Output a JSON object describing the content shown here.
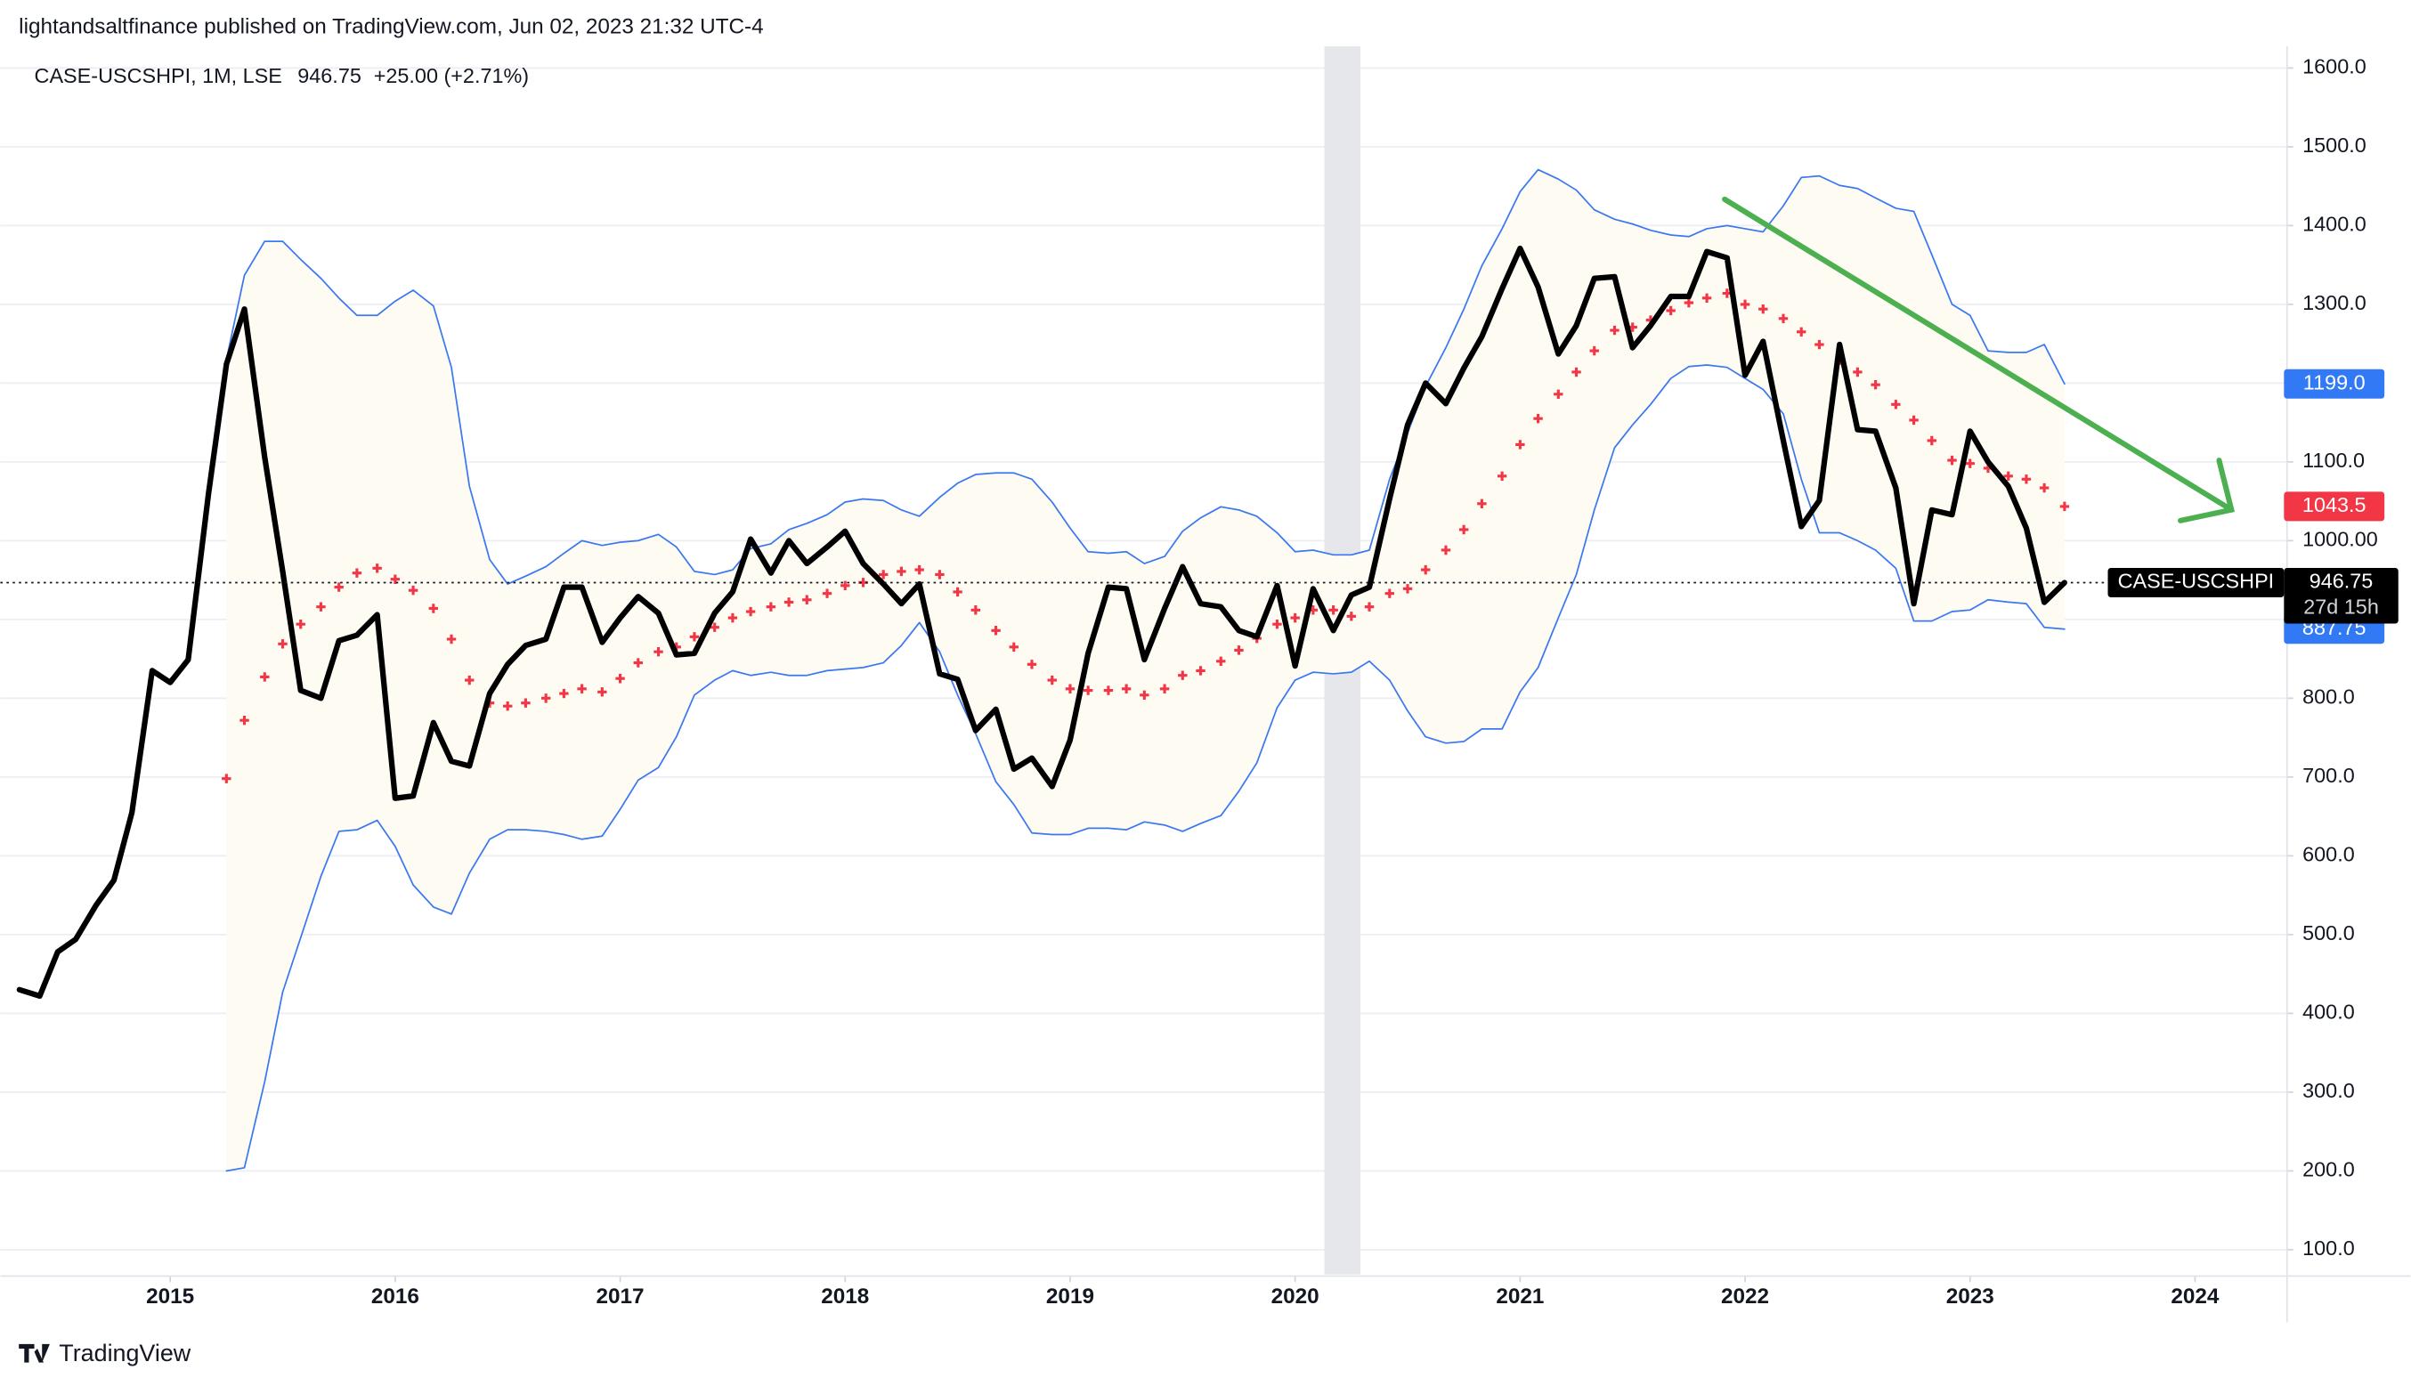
{
  "chart_data": {
    "type": "line",
    "header": "lightandsaltfinance published on TradingView.com, Jun 02, 2023 21:32 UTC-4",
    "legend": "CASE-USCSHPI, 1M, LSE",
    "change_label": "+25.00 (+2.71%)",
    "countdown": "27d 15h",
    "brand": "TradingView",
    "xlim": [
      2014.245,
      2024.409
    ],
    "xticks": [
      2015,
      2016,
      2017,
      2018,
      2019,
      2020,
      2021,
      2022,
      2023,
      2024
    ],
    "ylim": [
      68.5,
      1627.5
    ],
    "yticks": [
      {
        "value": 100,
        "label": "100.0"
      },
      {
        "value": 200,
        "label": "200.0"
      },
      {
        "value": 300,
        "label": "300.0"
      },
      {
        "value": 400,
        "label": "400.0"
      },
      {
        "value": 500,
        "label": "500.0"
      },
      {
        "value": 600,
        "label": "600.0"
      },
      {
        "value": 700,
        "label": "700.0"
      },
      {
        "value": 800,
        "label": "800.0"
      },
      {
        "value": 900,
        "label": "900.0"
      },
      {
        "value": 1000,
        "label": "1000.00"
      },
      {
        "value": 1100,
        "label": "1100.0"
      },
      {
        "value": 1200,
        "label": "1200.0"
      },
      {
        "value": 1300,
        "label": "1300.0"
      },
      {
        "value": 1400,
        "label": "1400.0"
      },
      {
        "value": 1500,
        "label": "1500.0"
      },
      {
        "value": 1600,
        "label": "1600.0"
      }
    ],
    "grid": true,
    "shaded_range": [
      2020.13,
      2020.29
    ],
    "shaded_color": "#e6e7ea",
    "band_fill": "#fdfbf2",
    "x": [
      2014.33,
      2014.42,
      2014.5,
      2014.58,
      2014.67,
      2014.75,
      2014.83,
      2014.92,
      2015,
      2015.08,
      2015.17,
      2015.25,
      2015.33,
      2015.42,
      2015.5,
      2015.58,
      2015.67,
      2015.75,
      2015.83,
      2015.92,
      2016,
      2016.08,
      2016.17,
      2016.25,
      2016.33,
      2016.42,
      2016.5,
      2016.58,
      2016.67,
      2016.75,
      2016.83,
      2016.92,
      2017,
      2017.08,
      2017.17,
      2017.25,
      2017.33,
      2017.42,
      2017.5,
      2017.58,
      2017.67,
      2017.75,
      2017.83,
      2017.92,
      2018,
      2018.08,
      2018.17,
      2018.25,
      2018.33,
      2018.42,
      2018.5,
      2018.58,
      2018.67,
      2018.75,
      2018.83,
      2018.92,
      2019,
      2019.08,
      2019.17,
      2019.25,
      2019.33,
      2019.42,
      2019.5,
      2019.58,
      2019.67,
      2019.75,
      2019.83,
      2019.92,
      2020,
      2020.08,
      2020.17,
      2020.25,
      2020.33,
      2020.42,
      2020.5,
      2020.58,
      2020.67,
      2020.75,
      2020.83,
      2020.92,
      2021,
      2021.08,
      2021.17,
      2021.25,
      2021.33,
      2021.42,
      2021.5,
      2021.58,
      2021.67,
      2021.75,
      2021.83,
      2021.92,
      2022,
      2022.08,
      2022.17,
      2022.25,
      2022.33,
      2022.42,
      2022.5,
      2022.58,
      2022.67,
      2022.75,
      2022.83,
      2022.92,
      2023,
      2023.08,
      2023.17,
      2023.25,
      2023.33,
      2023.42
    ],
    "series": [
      {
        "name": "CASE-USCSHPI",
        "color": "#000000",
        "style": "line",
        "width": 3.6,
        "values": [
          430,
          422,
          478,
          494,
          537,
          569,
          655,
          835,
          820,
          849,
          1059,
          1224,
          1294,
          1106,
          961,
          810,
          800,
          873,
          880,
          906,
          673,
          676,
          769,
          720,
          714,
          806,
          843,
          867,
          875,
          941,
          941,
          871,
          902,
          929,
          908,
          855,
          857,
          908,
          935,
          1002,
          959,
          1000,
          971,
          992,
          1012,
          971,
          945,
          920,
          945,
          831,
          824,
          759,
          786,
          710,
          724,
          688,
          747,
          857,
          941,
          939,
          849,
          914,
          967,
          920,
          916,
          886,
          878,
          943,
          841,
          939,
          886,
          931,
          941,
          1053,
          1147,
          1200,
          1174,
          1219,
          1259,
          1320,
          1371,
          1322,
          1237,
          1273,
          1333,
          1335,
          1245,
          1273,
          1310,
          1310,
          1367,
          1359,
          1210,
          1253,
          1127,
          1018,
          1051,
          1249,
          1141,
          1139,
          1067,
          920,
          1039,
          1033,
          1139,
          1100,
          1069,
          1016,
          921.75,
          946.75
        ]
      },
      {
        "color": "#3b78f0",
        "style": "line",
        "width": 1,
        "box_color": "#3179f5",
        "last_label": "1199.0",
        "values": [
          null,
          null,
          null,
          null,
          null,
          null,
          null,
          null,
          null,
          null,
          null,
          1230,
          1337,
          1380,
          1380,
          1357,
          1333,
          1308,
          1286,
          1286,
          1304,
          1318,
          1298,
          1220,
          1069,
          976,
          945,
          955,
          967,
          984,
          1000,
          994,
          998,
          1000,
          1008,
          992,
          961,
          957,
          963,
          990,
          996,
          1014,
          1022,
          1033,
          1049,
          1053,
          1051,
          1039,
          1031,
          1055,
          1073,
          1084,
          1086,
          1086,
          1078,
          1049,
          1016,
          986,
          984,
          986,
          971,
          980,
          1012,
          1029,
          1043,
          1039,
          1031,
          1010,
          986,
          988,
          982,
          982,
          988,
          1078,
          1137,
          1196,
          1245,
          1294,
          1349,
          1396,
          1443,
          1471,
          1459,
          1445,
          1420,
          1408,
          1402,
          1394,
          1388,
          1386,
          1396,
          1400,
          1396,
          1392,
          1425,
          1461,
          1463,
          1451,
          1447,
          1435,
          1422,
          1418,
          1363,
          1300,
          1286,
          1241,
          1239,
          1239,
          1249,
          1199
        ]
      },
      {
        "color": "#3b78f0",
        "style": "line",
        "width": 1,
        "box_color": "#3179f5",
        "last_label": "887.75",
        "values": [
          null,
          null,
          null,
          null,
          null,
          null,
          null,
          null,
          null,
          null,
          null,
          200,
          204,
          313,
          427,
          496,
          574,
          631,
          633,
          645,
          612,
          563,
          535,
          526,
          578,
          621,
          633,
          633,
          631,
          627,
          621,
          625,
          659,
          696,
          712,
          751,
          804,
          823,
          835,
          829,
          833,
          829,
          829,
          835,
          837,
          839,
          845,
          867,
          896,
          859,
          804,
          755,
          694,
          665,
          629,
          627,
          627,
          635,
          635,
          633,
          643,
          639,
          631,
          641,
          651,
          682,
          718,
          788,
          823,
          833,
          831,
          833,
          847,
          823,
          784,
          751,
          743,
          745,
          761,
          761,
          808,
          839,
          902,
          957,
          1039,
          1118,
          1147,
          1173,
          1206,
          1221,
          1223,
          1220,
          1206,
          1192,
          1161,
          1078,
          1010,
          1010,
          1000,
          988,
          965,
          898,
          898,
          910,
          912,
          925,
          922,
          920,
          890,
          887.75
        ]
      },
      {
        "color": "#f23645",
        "style": "cross",
        "width": 1.8,
        "box_color": "#f23645",
        "last_label": "1043.5",
        "values": [
          null,
          null,
          null,
          null,
          null,
          null,
          null,
          null,
          null,
          null,
          null,
          698,
          772,
          827,
          869,
          894,
          916,
          941,
          959,
          965,
          951,
          937,
          914,
          875,
          823,
          794,
          790,
          794,
          800,
          806,
          812,
          808,
          825,
          845,
          859,
          865,
          878,
          890,
          902,
          910,
          916,
          922,
          925,
          933,
          943,
          947,
          957,
          961,
          963,
          957,
          935,
          912,
          886,
          865,
          843,
          823,
          812,
          810,
          810,
          812,
          804,
          812,
          829,
          835,
          847,
          861,
          876,
          894,
          902,
          912,
          912,
          904,
          916,
          933,
          939,
          963,
          988,
          1014,
          1047,
          1082,
          1122,
          1155,
          1186,
          1214,
          1241,
          1267,
          1271,
          1280,
          1292,
          1302,
          1308,
          1314,
          1300,
          1294,
          1282,
          1265,
          1249,
          1229,
          1214,
          1198,
          1173,
          1153,
          1127,
          1102,
          1098,
          1092,
          1082,
          1078,
          1067,
          1043.5
        ]
      }
    ]
  }
}
